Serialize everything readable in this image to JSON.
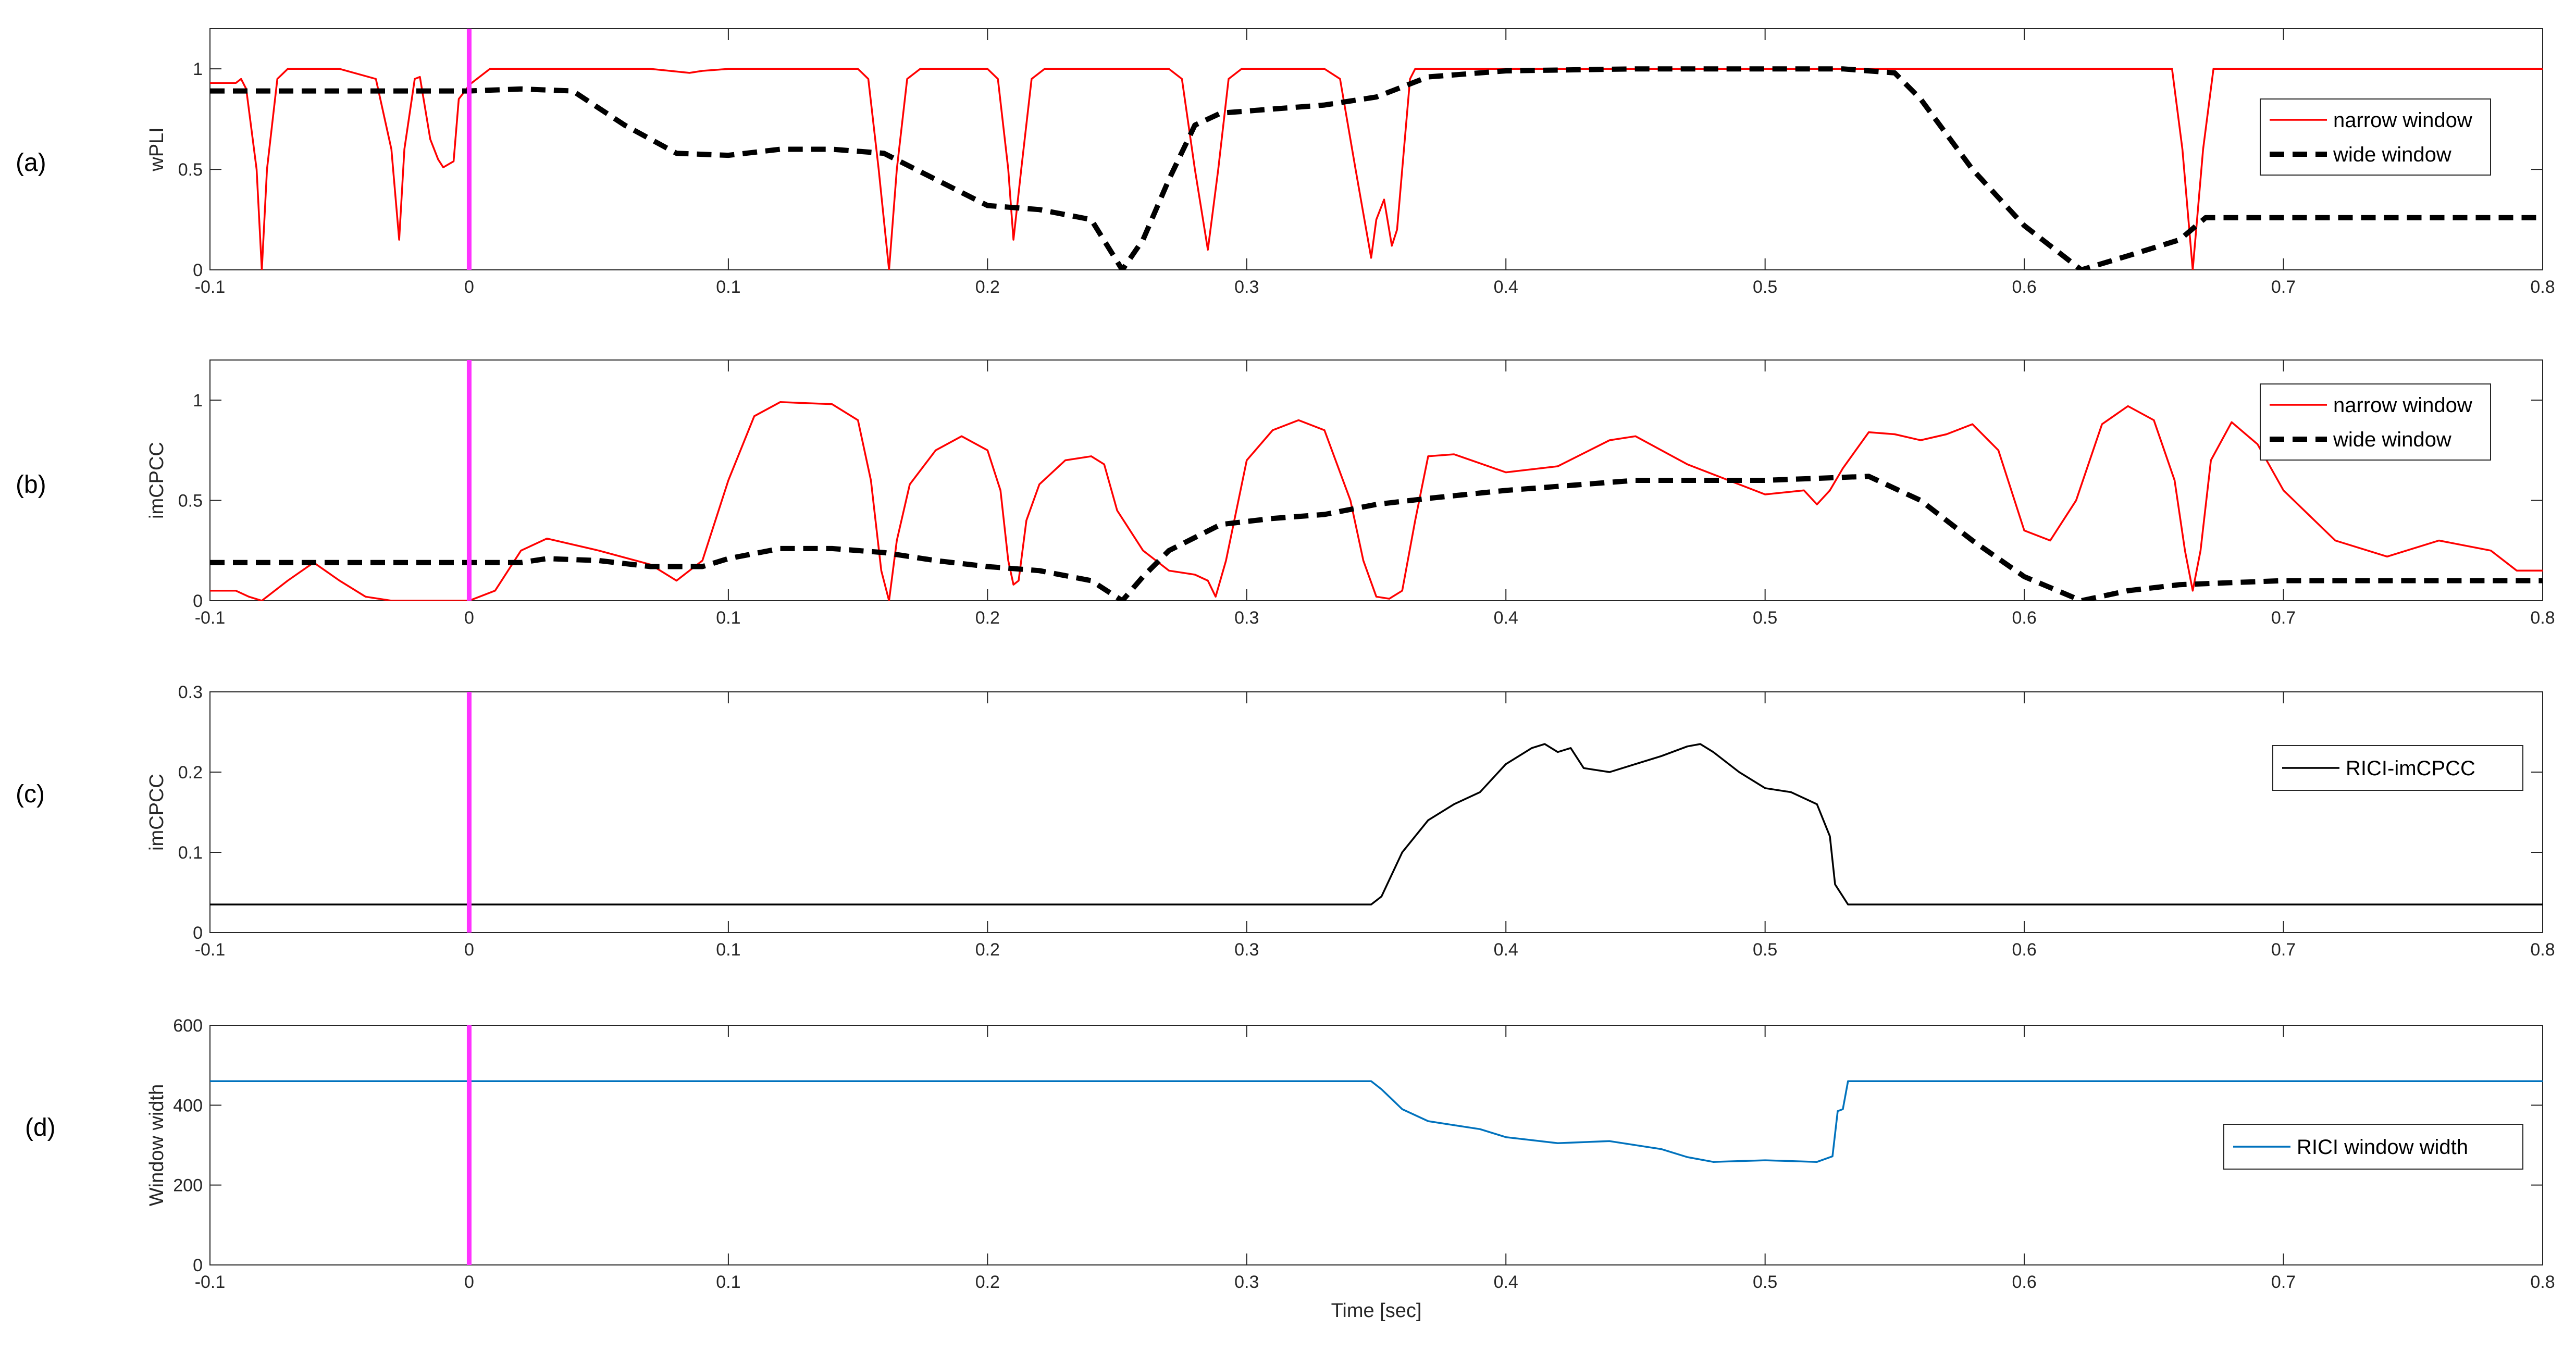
{
  "chart_data": [
    {
      "type": "line",
      "panel_label": "(a)",
      "ylabel": "wPLI",
      "xlim": [
        -0.1,
        0.8
      ],
      "ylim": [
        0,
        1.2
      ],
      "xticks": [
        -0.1,
        0,
        0.1,
        0.2,
        0.3,
        0.4,
        0.5,
        0.6,
        0.7,
        0.8
      ],
      "xtick_labels": [
        "-0.1",
        "0",
        "0.1",
        "0.2",
        "0.3",
        "0.4",
        "0.5",
        "0.6",
        "0.7",
        "0.8"
      ],
      "yticks": [
        0,
        0.5,
        1
      ],
      "ytick_labels": [
        "0",
        "0.5",
        "1"
      ],
      "legend": "top-right",
      "stimulus_marker_x": 0,
      "series": [
        {
          "name": "narrow window",
          "color": "#ff0000",
          "style": "solid",
          "x": [
            -0.1,
            -0.09,
            -0.088,
            -0.086,
            -0.082,
            -0.08,
            -0.078,
            -0.074,
            -0.07,
            -0.05,
            -0.036,
            -0.03,
            -0.027,
            -0.025,
            -0.021,
            -0.019,
            -0.015,
            -0.012,
            -0.01,
            -0.006,
            -0.004,
            -0.001,
            0.0,
            0.008,
            0.02,
            0.07,
            0.085,
            0.09,
            0.1,
            0.15,
            0.154,
            0.158,
            0.162,
            0.165,
            0.169,
            0.174,
            0.2,
            0.204,
            0.208,
            0.21,
            0.213,
            0.217,
            0.222,
            0.27,
            0.275,
            0.28,
            0.285,
            0.289,
            0.293,
            0.298,
            0.33,
            0.336,
            0.342,
            0.348,
            0.35,
            0.353,
            0.356,
            0.358,
            0.36,
            0.363,
            0.365,
            0.37,
            0.6,
            0.657,
            0.661,
            0.665,
            0.669,
            0.673,
            0.8
          ],
          "y": [
            0.93,
            0.93,
            0.95,
            0.9,
            0.5,
            0.0,
            0.5,
            0.95,
            1.0,
            1.0,
            0.95,
            0.6,
            0.15,
            0.6,
            0.95,
            0.96,
            0.65,
            0.55,
            0.51,
            0.54,
            0.85,
            0.9,
            0.92,
            1.0,
            1.0,
            1.0,
            0.98,
            0.99,
            1.0,
            1.0,
            0.95,
            0.5,
            0.0,
            0.5,
            0.95,
            1.0,
            1.0,
            0.95,
            0.5,
            0.15,
            0.5,
            0.95,
            1.0,
            1.0,
            0.95,
            0.5,
            0.1,
            0.5,
            0.95,
            1.0,
            1.0,
            0.95,
            0.5,
            0.06,
            0.25,
            0.35,
            0.12,
            0.2,
            0.5,
            0.95,
            1.0,
            1.0,
            1.0,
            1.0,
            0.6,
            0.0,
            0.6,
            1.0,
            1.0
          ]
        },
        {
          "name": "wide window",
          "color": "#000000",
          "style": "dashed",
          "x": [
            -0.1,
            -0.06,
            -0.02,
            0.0,
            0.02,
            0.04,
            0.06,
            0.08,
            0.1,
            0.12,
            0.14,
            0.16,
            0.18,
            0.2,
            0.22,
            0.24,
            0.252,
            0.26,
            0.27,
            0.28,
            0.29,
            0.31,
            0.33,
            0.35,
            0.37,
            0.4,
            0.45,
            0.5,
            0.53,
            0.55,
            0.56,
            0.58,
            0.6,
            0.622,
            0.64,
            0.66,
            0.67,
            0.7,
            0.8
          ],
          "y": [
            0.89,
            0.89,
            0.89,
            0.89,
            0.9,
            0.89,
            0.72,
            0.58,
            0.57,
            0.6,
            0.6,
            0.58,
            0.45,
            0.32,
            0.3,
            0.25,
            0.0,
            0.15,
            0.45,
            0.72,
            0.78,
            0.8,
            0.82,
            0.86,
            0.96,
            0.99,
            1.0,
            1.0,
            1.0,
            0.98,
            0.85,
            0.5,
            0.22,
            0.0,
            0.07,
            0.15,
            0.26,
            0.26,
            0.26
          ]
        }
      ]
    },
    {
      "type": "line",
      "panel_label": "(b)",
      "ylabel": "imCPCC",
      "xlim": [
        -0.1,
        0.8
      ],
      "ylim": [
        0,
        1.2
      ],
      "xticks": [
        -0.1,
        0,
        0.1,
        0.2,
        0.3,
        0.4,
        0.5,
        0.6,
        0.7,
        0.8
      ],
      "xtick_labels": [
        "-0.1",
        "0",
        "0.1",
        "0.2",
        "0.3",
        "0.4",
        "0.5",
        "0.6",
        "0.7",
        "0.8"
      ],
      "yticks": [
        0,
        0.5,
        1
      ],
      "ytick_labels": [
        "0",
        "0.5",
        "1"
      ],
      "legend": "top-right",
      "stimulus_marker_x": 0,
      "series": [
        {
          "name": "narrow window",
          "color": "#ff0000",
          "style": "solid",
          "x": [
            -0.1,
            -0.09,
            -0.085,
            -0.08,
            -0.07,
            -0.06,
            -0.05,
            -0.04,
            -0.03,
            -0.01,
            0.0,
            0.01,
            0.02,
            0.03,
            0.05,
            0.07,
            0.08,
            0.09,
            0.1,
            0.11,
            0.12,
            0.14,
            0.15,
            0.155,
            0.159,
            0.162,
            0.165,
            0.17,
            0.18,
            0.19,
            0.2,
            0.205,
            0.208,
            0.21,
            0.212,
            0.215,
            0.22,
            0.23,
            0.24,
            0.245,
            0.25,
            0.26,
            0.27,
            0.28,
            0.285,
            0.288,
            0.292,
            0.3,
            0.31,
            0.32,
            0.33,
            0.34,
            0.345,
            0.35,
            0.355,
            0.36,
            0.365,
            0.37,
            0.38,
            0.4,
            0.42,
            0.44,
            0.45,
            0.47,
            0.5,
            0.515,
            0.52,
            0.525,
            0.53,
            0.54,
            0.55,
            0.56,
            0.57,
            0.58,
            0.59,
            0.6,
            0.61,
            0.62,
            0.63,
            0.64,
            0.65,
            0.658,
            0.662,
            0.665,
            0.668,
            0.672,
            0.68,
            0.69,
            0.7,
            0.72,
            0.74,
            0.76,
            0.78,
            0.79,
            0.8
          ],
          "y": [
            0.05,
            0.05,
            0.02,
            0.0,
            0.1,
            0.19,
            0.1,
            0.02,
            0.0,
            0.0,
            0.0,
            0.05,
            0.25,
            0.31,
            0.25,
            0.18,
            0.1,
            0.2,
            0.6,
            0.92,
            0.99,
            0.98,
            0.9,
            0.6,
            0.15,
            0.0,
            0.3,
            0.58,
            0.75,
            0.82,
            0.75,
            0.55,
            0.2,
            0.08,
            0.1,
            0.4,
            0.58,
            0.7,
            0.72,
            0.68,
            0.45,
            0.25,
            0.15,
            0.13,
            0.1,
            0.02,
            0.2,
            0.7,
            0.85,
            0.9,
            0.85,
            0.5,
            0.2,
            0.02,
            0.01,
            0.05,
            0.4,
            0.72,
            0.73,
            0.64,
            0.67,
            0.8,
            0.82,
            0.68,
            0.53,
            0.55,
            0.48,
            0.55,
            0.66,
            0.84,
            0.83,
            0.8,
            0.83,
            0.88,
            0.75,
            0.35,
            0.3,
            0.5,
            0.88,
            0.97,
            0.9,
            0.6,
            0.25,
            0.05,
            0.25,
            0.7,
            0.89,
            0.78,
            0.55,
            0.3,
            0.22,
            0.3,
            0.25,
            0.15,
            0.15
          ]
        },
        {
          "name": "wide window",
          "color": "#000000",
          "style": "dashed",
          "x": [
            -0.1,
            -0.05,
            0.0,
            0.02,
            0.03,
            0.05,
            0.07,
            0.09,
            0.1,
            0.12,
            0.14,
            0.16,
            0.18,
            0.2,
            0.22,
            0.24,
            0.252,
            0.26,
            0.27,
            0.29,
            0.31,
            0.33,
            0.35,
            0.37,
            0.4,
            0.45,
            0.5,
            0.52,
            0.54,
            0.56,
            0.58,
            0.6,
            0.622,
            0.64,
            0.66,
            0.7,
            0.8
          ],
          "y": [
            0.19,
            0.19,
            0.19,
            0.19,
            0.21,
            0.2,
            0.17,
            0.17,
            0.21,
            0.26,
            0.26,
            0.24,
            0.2,
            0.17,
            0.15,
            0.1,
            0.0,
            0.12,
            0.25,
            0.38,
            0.41,
            0.43,
            0.48,
            0.51,
            0.55,
            0.6,
            0.6,
            0.61,
            0.62,
            0.5,
            0.3,
            0.12,
            0.0,
            0.05,
            0.08,
            0.1,
            0.1
          ]
        }
      ]
    },
    {
      "type": "line",
      "panel_label": "(c)",
      "ylabel": "imCPCC",
      "xlim": [
        -0.1,
        0.8
      ],
      "ylim": [
        0,
        0.3
      ],
      "xticks": [
        -0.1,
        0,
        0.1,
        0.2,
        0.3,
        0.4,
        0.5,
        0.6,
        0.7,
        0.8
      ],
      "xtick_labels": [
        "-0.1",
        "0",
        "0.1",
        "0.2",
        "0.3",
        "0.4",
        "0.5",
        "0.6",
        "0.7",
        "0.8"
      ],
      "yticks": [
        0,
        0.1,
        0.2,
        0.3
      ],
      "ytick_labels": [
        "0",
        "0.1",
        "0.2",
        "0.3"
      ],
      "legend": "right",
      "stimulus_marker_x": 0,
      "series": [
        {
          "name": "RICI-imCPCC",
          "color": "#000000",
          "style": "solid",
          "x": [
            -0.1,
            0.348,
            0.352,
            0.36,
            0.37,
            0.38,
            0.39,
            0.4,
            0.41,
            0.415,
            0.42,
            0.425,
            0.43,
            0.44,
            0.45,
            0.46,
            0.47,
            0.475,
            0.48,
            0.49,
            0.5,
            0.51,
            0.52,
            0.525,
            0.527,
            0.532,
            0.8
          ],
          "y": [
            0.035,
            0.035,
            0.045,
            0.1,
            0.14,
            0.16,
            0.175,
            0.21,
            0.23,
            0.235,
            0.225,
            0.23,
            0.205,
            0.2,
            0.21,
            0.22,
            0.232,
            0.235,
            0.225,
            0.2,
            0.18,
            0.175,
            0.16,
            0.12,
            0.06,
            0.035,
            0.035
          ]
        }
      ]
    },
    {
      "type": "line",
      "panel_label": "(d)",
      "ylabel": "Window width",
      "xlabel": "Time [sec]",
      "xlim": [
        -0.1,
        0.8
      ],
      "ylim": [
        0,
        600
      ],
      "xticks": [
        -0.1,
        0,
        0.1,
        0.2,
        0.3,
        0.4,
        0.5,
        0.6,
        0.7,
        0.8
      ],
      "xtick_labels": [
        "-0.1",
        "0",
        "0.1",
        "0.2",
        "0.3",
        "0.4",
        "0.5",
        "0.6",
        "0.7",
        "0.8"
      ],
      "yticks": [
        0,
        200,
        400,
        600
      ],
      "ytick_labels": [
        "0",
        "200",
        "400",
        "600"
      ],
      "legend": "right",
      "stimulus_marker_x": 0,
      "series": [
        {
          "name": "RICI window width",
          "color": "#0072bd",
          "style": "solid",
          "x": [
            -0.1,
            0.348,
            0.352,
            0.36,
            0.37,
            0.38,
            0.39,
            0.4,
            0.42,
            0.44,
            0.46,
            0.47,
            0.48,
            0.5,
            0.52,
            0.526,
            0.528,
            0.53,
            0.532,
            0.534,
            0.8
          ],
          "y": [
            460,
            460,
            440,
            390,
            360,
            350,
            340,
            320,
            305,
            310,
            290,
            270,
            258,
            262,
            258,
            272,
            385,
            390,
            460,
            460,
            460
          ]
        }
      ]
    }
  ]
}
